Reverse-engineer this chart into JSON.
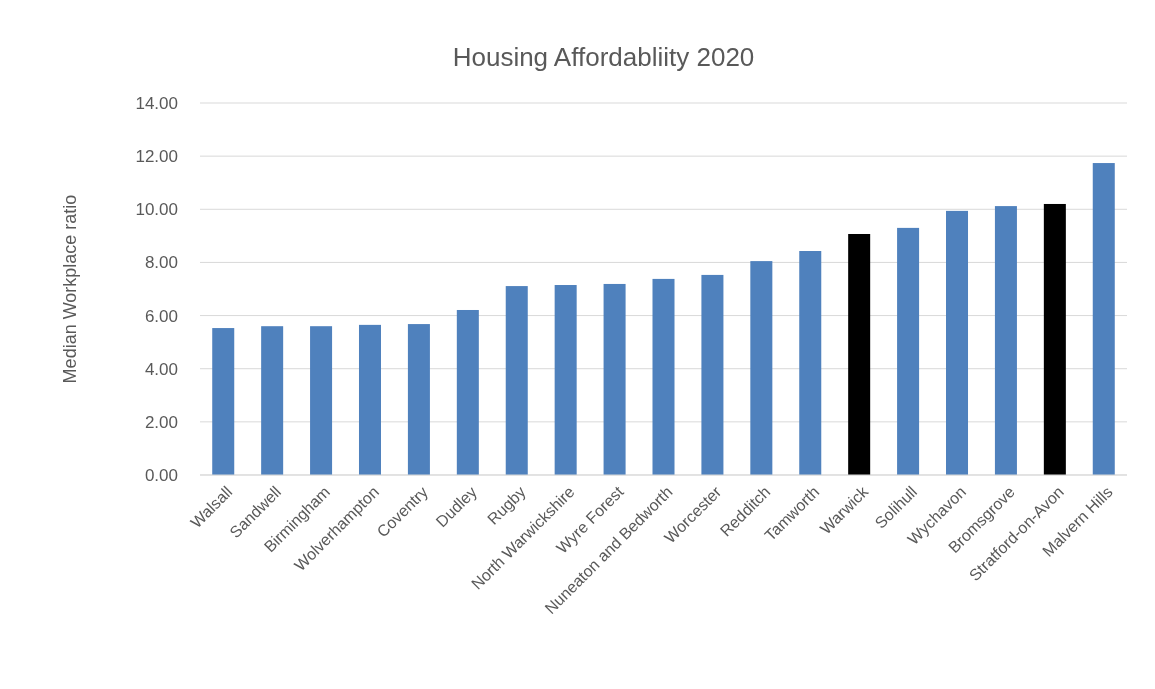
{
  "chart_data": {
    "type": "bar",
    "title": "Housing Affordabliity 2020",
    "ylabel": "Median Workplace ratio",
    "categories": [
      "Walsall",
      "Sandwell",
      "Birmingham",
      "Wolverhampton",
      "Coventry",
      "Dudley",
      "Rugby",
      "North Warwickshire",
      "Wyre Forest",
      "Nuneaton and Bedworth",
      "Worcester",
      "Redditch",
      "Tamworth",
      "Warwick",
      "Solihull",
      "Wychavon",
      "Bromsgrove",
      "Stratford-on-Avon",
      "Malvern Hills"
    ],
    "values": [
      5.53,
      5.6,
      5.6,
      5.65,
      5.68,
      6.21,
      7.11,
      7.15,
      7.19,
      7.38,
      7.53,
      8.05,
      8.43,
      9.07,
      9.3,
      9.94,
      10.12,
      10.2,
      11.74
    ],
    "colors": [
      "#4f81bd",
      "#4f81bd",
      "#4f81bd",
      "#4f81bd",
      "#4f81bd",
      "#4f81bd",
      "#4f81bd",
      "#4f81bd",
      "#4f81bd",
      "#4f81bd",
      "#4f81bd",
      "#4f81bd",
      "#4f81bd",
      "#000000",
      "#4f81bd",
      "#4f81bd",
      "#4f81bd",
      "#000000",
      "#4f81bd"
    ],
    "ylim": [
      0,
      14
    ],
    "yticks": [
      {
        "value": 0,
        "label": "0.00"
      },
      {
        "value": 2,
        "label": "2.00"
      },
      {
        "value": 4,
        "label": "4.00"
      },
      {
        "value": 6,
        "label": "6.00"
      },
      {
        "value": 8,
        "label": "8.00"
      },
      {
        "value": 10,
        "label": "10.00"
      },
      {
        "value": 12,
        "label": "12.00"
      },
      {
        "value": 14,
        "label": "14.00"
      }
    ],
    "grid": "y"
  }
}
